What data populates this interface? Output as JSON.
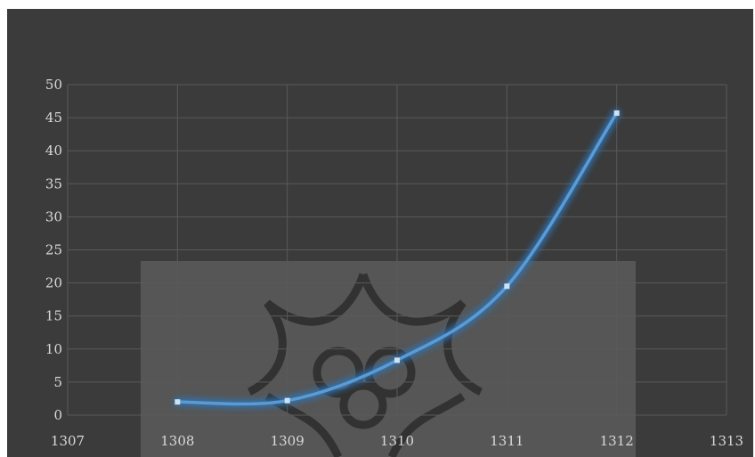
{
  "chart_data": {
    "type": "line",
    "title": "",
    "xlabel": "",
    "ylabel": "",
    "x": [
      1308,
      1309,
      1310,
      1311,
      1312
    ],
    "values": [
      2,
      2.2,
      8.3,
      19.5,
      45.7
    ],
    "xlim": [
      1307,
      1313
    ],
    "ylim": [
      0,
      50
    ],
    "xticks": [
      "1307",
      "1308",
      "1309",
      "1310",
      "1311",
      "1312",
      "1313"
    ],
    "yticks": [
      "0",
      "5",
      "10",
      "15",
      "20",
      "25",
      "30",
      "35",
      "40",
      "45",
      "50"
    ],
    "grid": true,
    "legend": "none",
    "colors": {
      "background": "#3b3b3b",
      "line": "#5b9bd5",
      "glow": "#2e75b6",
      "grid": "#5a5a5a",
      "text": "#d9d9d9",
      "watermark_box": "#6e6e6e",
      "watermark_emblem": "#262626"
    }
  }
}
